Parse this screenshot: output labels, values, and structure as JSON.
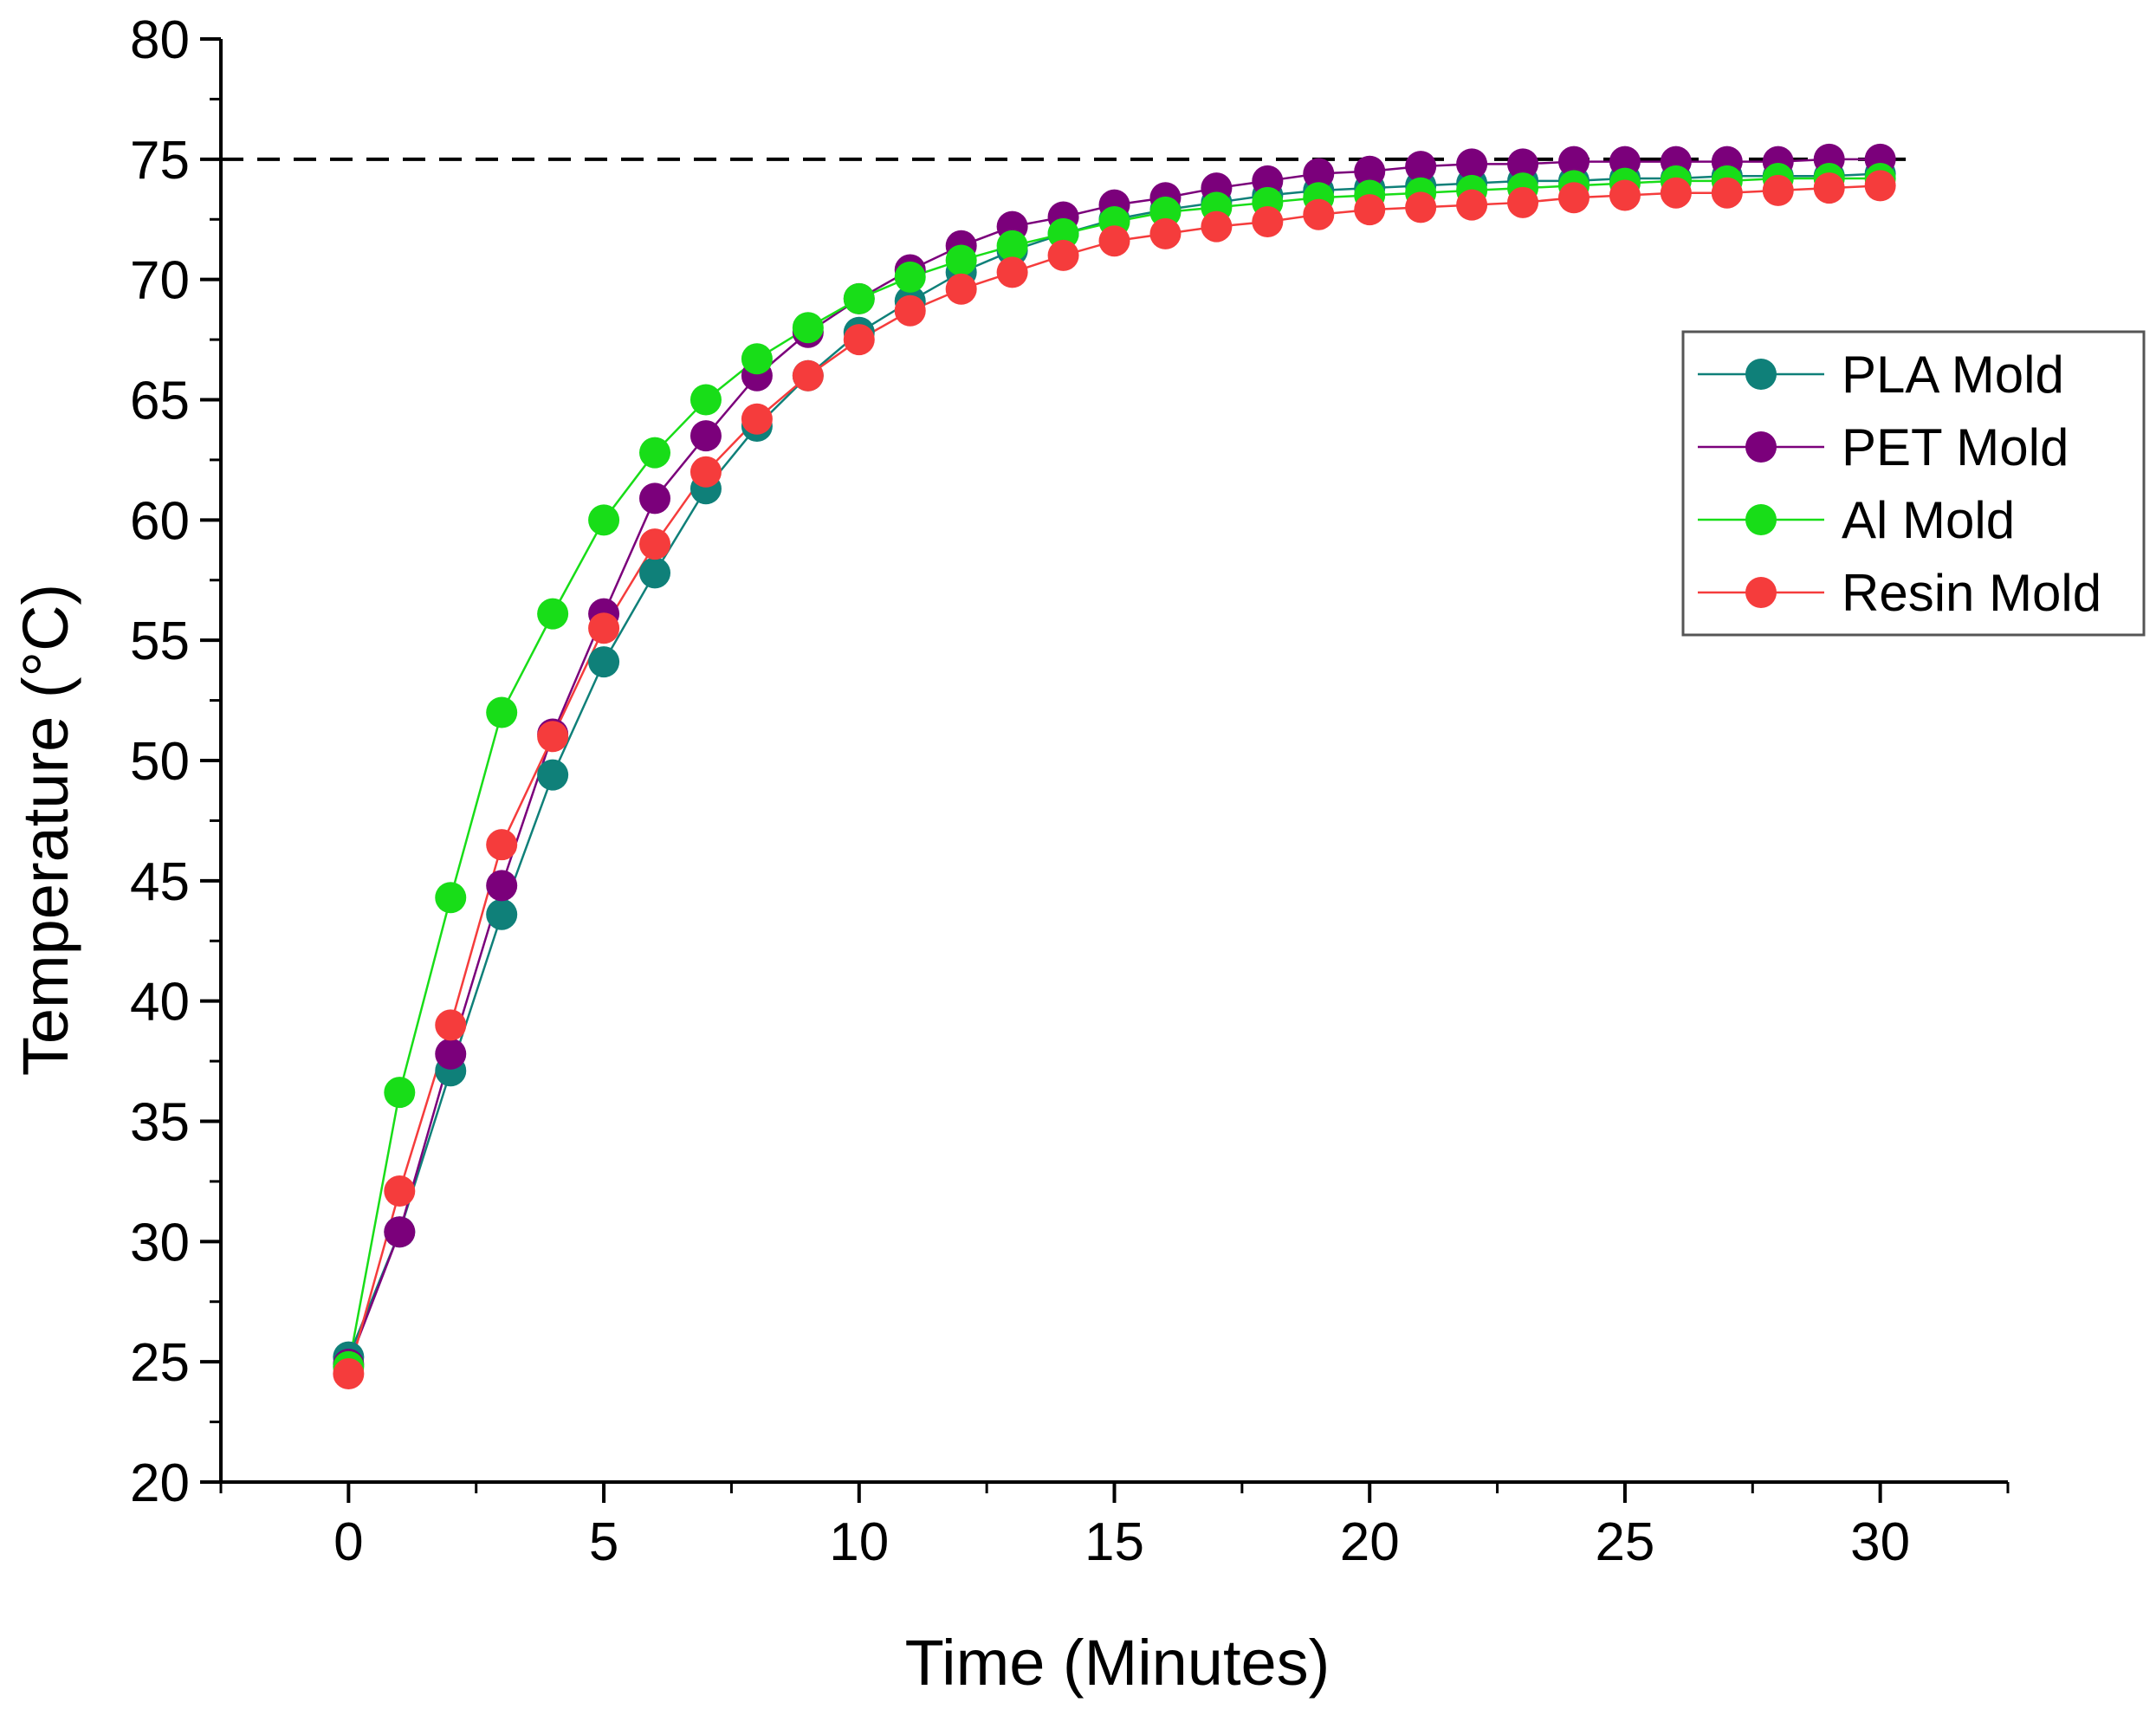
{
  "chart_data": {
    "type": "line",
    "title": "",
    "xlabel": "Time (Minutes)",
    "ylabel": "Temperature (°C)",
    "xlim": [
      -2.5,
      32.5
    ],
    "ylim": [
      20,
      80
    ],
    "xticks": [
      0,
      5,
      10,
      15,
      20,
      25,
      30
    ],
    "xtick_labels": [
      "0",
      "5",
      "10",
      "15",
      "20",
      "25",
      "30"
    ],
    "yticks": [
      20,
      25,
      30,
      35,
      40,
      45,
      50,
      55,
      60,
      65,
      70,
      75,
      80
    ],
    "ytick_labels": [
      "20",
      "25",
      "30",
      "35",
      "40",
      "45",
      "50",
      "55",
      "60",
      "65",
      "70",
      "75",
      "80"
    ],
    "reference_line": {
      "y": 75,
      "style": "dashed",
      "color": "#000000",
      "x_start": -2.5,
      "x_end": 30.5
    },
    "x": [
      0,
      1,
      2,
      3,
      4,
      5,
      6,
      7,
      8,
      9,
      10,
      11,
      12,
      13,
      14,
      15,
      16,
      17,
      18,
      19,
      20,
      21,
      22,
      23,
      24,
      25,
      26,
      27,
      28,
      29,
      30
    ],
    "legend_position": "upper-right",
    "series": [
      {
        "name": "PLA Mold",
        "color": "#0f8079",
        "values": [
          25.2,
          30.4,
          37.1,
          43.6,
          49.4,
          54.1,
          57.8,
          61.3,
          63.9,
          66.0,
          67.8,
          69.1,
          70.3,
          71.2,
          71.9,
          72.5,
          72.9,
          73.2,
          73.5,
          73.7,
          73.8,
          73.9,
          74.0,
          74.1,
          74.1,
          74.2,
          74.2,
          74.3,
          74.3,
          74.3,
          74.4
        ]
      },
      {
        "name": "PET Mold",
        "color": "#7b007b",
        "values": [
          24.9,
          30.4,
          37.8,
          44.8,
          51.1,
          56.1,
          60.9,
          63.5,
          66.0,
          67.8,
          69.2,
          70.4,
          71.4,
          72.2,
          72.6,
          73.1,
          73.4,
          73.8,
          74.1,
          74.4,
          74.5,
          74.7,
          74.8,
          74.8,
          74.9,
          74.9,
          74.9,
          74.9,
          74.9,
          75.0,
          75.0
        ]
      },
      {
        "name": "Al Mold",
        "color": "#18dd18",
        "values": [
          24.8,
          36.2,
          44.3,
          52.0,
          56.1,
          60.0,
          62.8,
          65.0,
          66.7,
          68.0,
          69.2,
          70.1,
          70.8,
          71.4,
          71.9,
          72.4,
          72.8,
          73.0,
          73.2,
          73.4,
          73.5,
          73.6,
          73.7,
          73.8,
          73.9,
          74.0,
          74.1,
          74.1,
          74.2,
          74.2,
          74.2
        ]
      },
      {
        "name": "Resin Mold",
        "color": "#f53c3c",
        "values": [
          24.5,
          32.1,
          39.0,
          46.5,
          51.0,
          55.5,
          59.0,
          62.0,
          64.2,
          66.0,
          67.5,
          68.7,
          69.6,
          70.3,
          71.0,
          71.6,
          71.9,
          72.2,
          72.4,
          72.7,
          72.9,
          73.0,
          73.1,
          73.2,
          73.4,
          73.5,
          73.6,
          73.6,
          73.7,
          73.8,
          73.9
        ]
      }
    ]
  }
}
